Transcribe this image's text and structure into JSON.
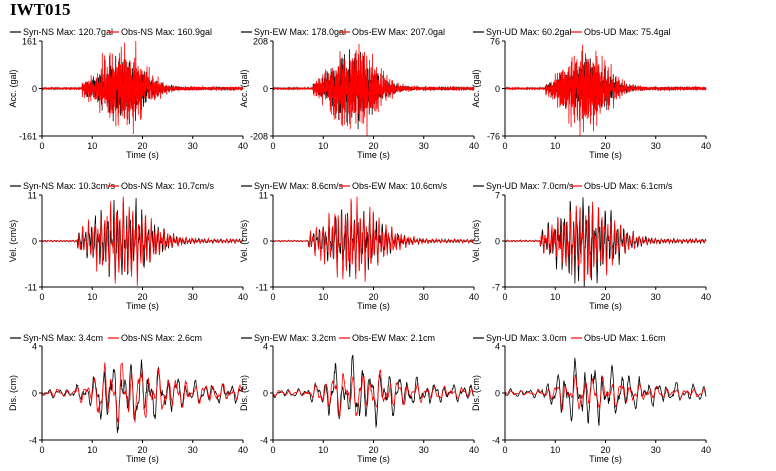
{
  "figure": {
    "title": "IWT015"
  },
  "colors": {
    "syn": "#000000",
    "obs": "#ff0000"
  },
  "chart_data": [
    {
      "type": "line",
      "row": "acc",
      "component": "NS",
      "ylabel": "Acc. (gal)",
      "xlabel": "Time (s)",
      "xlim": [
        0,
        40
      ],
      "ylim": [
        -161,
        161
      ],
      "yticks": [
        "161",
        "0",
        "-161"
      ],
      "xticks": [
        "0",
        "10",
        "20",
        "30",
        "40"
      ],
      "series": [
        {
          "name": "Syn-NS  Max: 120.7gal",
          "max": 120.7
        },
        {
          "name": "Obs-NS  Max: 160.9gal",
          "max": 160.9
        }
      ]
    },
    {
      "type": "line",
      "row": "acc",
      "component": "EW",
      "ylabel": "Acc. (gal)",
      "xlabel": "Time (s)",
      "xlim": [
        0,
        40
      ],
      "ylim": [
        -208,
        208
      ],
      "yticks": [
        "208",
        "0",
        "-208"
      ],
      "xticks": [
        "0",
        "10",
        "20",
        "30",
        "40"
      ],
      "series": [
        {
          "name": "Syn-EW  Max: 178.0gal",
          "max": 178.0
        },
        {
          "name": "Obs-EW  Max: 207.0gal",
          "max": 207.0
        }
      ]
    },
    {
      "type": "line",
      "row": "acc",
      "component": "UD",
      "ylabel": "Acc. (gal)",
      "xlabel": "Time (s)",
      "xlim": [
        0,
        40
      ],
      "ylim": [
        -76,
        76
      ],
      "yticks": [
        "76",
        "0",
        "-76"
      ],
      "xticks": [
        "0",
        "10",
        "20",
        "30",
        "40"
      ],
      "series": [
        {
          "name": "Syn-UD  Max: 60.2gal",
          "max": 60.2
        },
        {
          "name": "Obs-UD  Max: 75.4gal",
          "max": 75.4
        }
      ]
    },
    {
      "type": "line",
      "row": "vel",
      "component": "NS",
      "ylabel": "Vel. (cm/s)",
      "xlabel": "Time (s)",
      "xlim": [
        0,
        40
      ],
      "ylim": [
        -11,
        11
      ],
      "yticks": [
        "11",
        "0",
        "-11"
      ],
      "xticks": [
        "0",
        "10",
        "20",
        "30",
        "40"
      ],
      "series": [
        {
          "name": "Syn-NS  Max: 10.3cm/s",
          "max": 10.3
        },
        {
          "name": "Obs-NS  Max: 10.7cm/s",
          "max": 10.7
        }
      ]
    },
    {
      "type": "line",
      "row": "vel",
      "component": "EW",
      "ylabel": "Vel. (cm/s)",
      "xlabel": "Time (s)",
      "xlim": [
        0,
        40
      ],
      "ylim": [
        -11,
        11
      ],
      "yticks": [
        "11",
        "0",
        "-11"
      ],
      "xticks": [
        "0",
        "10",
        "20",
        "30",
        "40"
      ],
      "series": [
        {
          "name": "Syn-EW  Max: 8.6cm/s",
          "max": 8.6
        },
        {
          "name": "Obs-EW  Max: 10.6cm/s",
          "max": 10.6
        }
      ]
    },
    {
      "type": "line",
      "row": "vel",
      "component": "UD",
      "ylabel": "Vel. (cm/s)",
      "xlabel": "Time (s)",
      "xlim": [
        0,
        40
      ],
      "ylim": [
        -7,
        7
      ],
      "yticks": [
        "7",
        "0",
        "-7"
      ],
      "xticks": [
        "0",
        "10",
        "20",
        "30",
        "40"
      ],
      "series": [
        {
          "name": "Syn-UD  Max: 7.0cm/s",
          "max": 7.0
        },
        {
          "name": "Obs-UD  Max: 6.1cm/s",
          "max": 6.1
        }
      ]
    },
    {
      "type": "line",
      "row": "dis",
      "component": "NS",
      "ylabel": "Dis. (cm)",
      "xlabel": "Time (s)",
      "xlim": [
        0,
        40
      ],
      "ylim": [
        -4,
        4
      ],
      "yticks": [
        "4",
        "0",
        "-4"
      ],
      "xticks": [
        "0",
        "10",
        "20",
        "30",
        "40"
      ],
      "series": [
        {
          "name": "Syn-NS  Max: 3.4cm",
          "max": 3.4
        },
        {
          "name": "Obs-NS  Max: 2.6cm",
          "max": 2.6
        }
      ]
    },
    {
      "type": "line",
      "row": "dis",
      "component": "EW",
      "ylabel": "Dis. (cm)",
      "xlabel": "Time (s)",
      "xlim": [
        0,
        40
      ],
      "ylim": [
        -4,
        4
      ],
      "yticks": [
        "4",
        "0",
        "-4"
      ],
      "xticks": [
        "0",
        "10",
        "20",
        "30",
        "40"
      ],
      "series": [
        {
          "name": "Syn-EW  Max: 3.2cm",
          "max": 3.2
        },
        {
          "name": "Obs-EW  Max: 2.1cm",
          "max": 2.1
        }
      ]
    },
    {
      "type": "line",
      "row": "dis",
      "component": "UD",
      "ylabel": "Dis. (cm)",
      "xlabel": "Time (s)",
      "xlim": [
        0,
        40
      ],
      "ylim": [
        -4,
        4
      ],
      "yticks": [
        "4",
        "0",
        "-4"
      ],
      "xticks": [
        "0",
        "10",
        "20",
        "30",
        "40"
      ],
      "series": [
        {
          "name": "Syn-UD  Max: 3.0cm",
          "max": 3.0
        },
        {
          "name": "Obs-UD  Max: 1.6cm",
          "max": 1.6
        }
      ]
    }
  ]
}
